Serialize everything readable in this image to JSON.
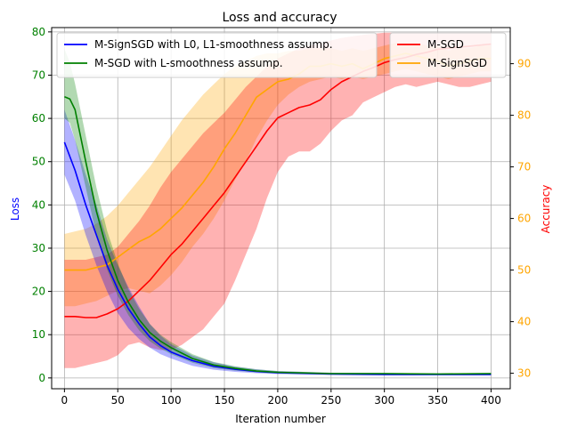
{
  "chart_data": {
    "type": "line",
    "title": "Loss and accuracy",
    "xlabel": "Iteration number",
    "ylabel_left": "Loss",
    "ylabel_right": "Accuracy",
    "xlim": [
      -12,
      418
    ],
    "ylim_left": [
      -2.5,
      81
    ],
    "ylim_right": [
      27,
      97
    ],
    "x_ticks": [
      0,
      50,
      100,
      150,
      200,
      250,
      300,
      350,
      400
    ],
    "y_ticks_left": [
      0,
      10,
      20,
      30,
      40,
      50,
      60,
      70,
      80
    ],
    "y_ticks_right": [
      30,
      40,
      50,
      60,
      70,
      80,
      90
    ],
    "grid": true,
    "colors": {
      "left_axis_ticks": "#008000",
      "left_axis_label": "#0000ff",
      "right_axis_ticks": "#ffa500",
      "right_axis_label": "#ff0000"
    },
    "legend_left": {
      "placement": "top-left",
      "entries": [
        "M-SignSGD with L0, L1-smoothness assump.",
        "M-SGD with L-smoothness assump."
      ]
    },
    "legend_right": {
      "placement": "top-right",
      "entries": [
        "M-SGD",
        "M-SignSGD"
      ]
    },
    "series": [
      {
        "name": "M-SignSGD with L0, L1-smoothness assump.",
        "axis": "left",
        "color": "#0000ff",
        "x": [
          0,
          10,
          20,
          30,
          40,
          50,
          60,
          70,
          80,
          90,
          100,
          120,
          140,
          160,
          180,
          200,
          250,
          300,
          350,
          400
        ],
        "y": [
          54.5,
          48,
          40,
          33,
          26,
          20.5,
          16,
          12.5,
          9.5,
          7.5,
          6,
          4,
          2.7,
          2,
          1.5,
          1.2,
          0.9,
          0.8,
          0.8,
          0.8
        ],
        "band_low": [
          47,
          41,
          33,
          26,
          20,
          15,
          11.5,
          9,
          7,
          5.5,
          4.5,
          2.8,
          1.9,
          1.4,
          1.1,
          0.9,
          0.7,
          0.6,
          0.6,
          0.6
        ],
        "band_high": [
          62,
          55,
          47,
          40,
          32,
          26,
          21,
          16.5,
          12.5,
          9.8,
          7.8,
          5.2,
          3.6,
          2.6,
          2,
          1.6,
          1.2,
          1.1,
          1.1,
          1.1
        ]
      },
      {
        "name": "M-SGD with L-smoothness assump.",
        "axis": "left",
        "color": "#008000",
        "x": [
          0,
          5,
          10,
          20,
          30,
          40,
          50,
          60,
          70,
          80,
          90,
          100,
          120,
          140,
          160,
          180,
          200,
          250,
          300,
          350,
          400
        ],
        "y": [
          65,
          64.5,
          62,
          50,
          38.5,
          29.5,
          22.5,
          17.5,
          13.5,
          10.5,
          8.5,
          7,
          4.5,
          3,
          2.2,
          1.6,
          1.3,
          1,
          1,
          0.9,
          1
        ],
        "band_low": [
          60,
          59,
          55,
          44,
          33,
          25,
          19,
          14.5,
          11,
          8.5,
          6.8,
          5.5,
          3.5,
          2.3,
          1.7,
          1.3,
          1,
          0.8,
          0.8,
          0.7,
          0.8
        ],
        "band_high": [
          76,
          73,
          68,
          56,
          44,
          34,
          26.5,
          20.5,
          16,
          12.5,
          10,
          8.3,
          5.5,
          3.7,
          2.7,
          2,
          1.6,
          1.2,
          1.2,
          1.1,
          1.2
        ]
      },
      {
        "name": "M-SGD",
        "axis": "right",
        "color": "#ff0000",
        "x": [
          0,
          10,
          20,
          30,
          40,
          50,
          60,
          70,
          80,
          90,
          100,
          110,
          120,
          130,
          140,
          150,
          160,
          170,
          180,
          190,
          200,
          210,
          220,
          230,
          240,
          250,
          260,
          270,
          280,
          290,
          300,
          310,
          320,
          330,
          340,
          350,
          360,
          370,
          380,
          390,
          400
        ],
        "y": [
          41,
          41,
          40.8,
          40.8,
          41.5,
          42.5,
          44,
          46,
          48,
          50.5,
          53,
          55,
          57.5,
          60,
          62.5,
          65,
          68,
          71,
          74,
          77,
          79.5,
          80.5,
          81.5,
          82,
          83,
          85,
          86.5,
          87.5,
          88.5,
          89.3,
          90.2,
          90.8,
          91.2,
          91.8,
          92.2,
          92.8,
          93,
          93.2,
          93.4,
          93.6,
          93.8
        ],
        "band_low": [
          31,
          31,
          31.5,
          32,
          32.5,
          33.5,
          35.5,
          36,
          35,
          34.5,
          34.5,
          35.5,
          37,
          38.5,
          41,
          43.5,
          48,
          53,
          58,
          64,
          69,
          72,
          73,
          73,
          74.5,
          77,
          79,
          80,
          82.5,
          83.5,
          84.5,
          85.5,
          86,
          85.5,
          86,
          86.5,
          86,
          85.5,
          85.5,
          86,
          86.5
        ],
        "band_high": [
          52,
          52,
          52,
          52.5,
          53,
          54.5,
          57,
          59.5,
          62.5,
          66,
          69,
          71.5,
          74,
          76.5,
          78.5,
          80.5,
          83,
          85.5,
          87.5,
          89.5,
          91,
          92,
          93,
          93.5,
          94,
          94.5,
          95,
          95.3,
          95.6,
          95.8,
          96,
          96,
          96,
          96,
          96,
          96,
          96,
          96,
          96,
          96,
          96
        ]
      },
      {
        "name": "M-SignSGD",
        "axis": "right",
        "color": "#ffa500",
        "x": [
          0,
          10,
          20,
          30,
          40,
          50,
          60,
          70,
          80,
          90,
          100,
          110,
          120,
          130,
          140,
          150,
          160,
          170,
          180,
          190,
          200,
          210,
          220,
          230,
          240,
          250,
          260,
          270,
          280,
          290,
          300,
          310,
          320,
          330,
          340,
          350,
          360,
          370,
          380,
          390,
          400
        ],
        "y": [
          50,
          50,
          50,
          50.5,
          51,
          52.5,
          54,
          55.5,
          56.5,
          58,
          60,
          62,
          64.5,
          67,
          70,
          73.5,
          76.5,
          80,
          83.5,
          85,
          86.5,
          87,
          88,
          89.5,
          89.5,
          90,
          89.5,
          90,
          89,
          90,
          91,
          91.5,
          92,
          91.5,
          91,
          90.5,
          89.5,
          90,
          90.5,
          91,
          91
        ],
        "band_low": [
          43,
          43,
          43.5,
          44,
          45,
          46,
          46.5,
          46,
          45.5,
          47,
          49,
          51.5,
          54.5,
          57,
          60,
          63.5,
          67.5,
          71,
          75.5,
          79,
          82,
          84,
          85.5,
          86.5,
          87,
          87.5,
          87,
          87.5,
          87,
          87.5,
          88,
          88.5,
          89,
          88.5,
          88,
          87.5,
          87,
          87.5,
          88,
          88.5,
          88.5
        ],
        "band_high": [
          57,
          57.5,
          58,
          59,
          60.5,
          62.5,
          65,
          67.5,
          70,
          73,
          76,
          79,
          81.5,
          84,
          86,
          88,
          89.5,
          90.5,
          91.5,
          92,
          92,
          92.5,
          92.5,
          93,
          93,
          93,
          92.5,
          93,
          92.5,
          93,
          93.5,
          94,
          94,
          94,
          93.5,
          93.5,
          92.5,
          93,
          93,
          93.5,
          93.5
        ]
      }
    ]
  }
}
